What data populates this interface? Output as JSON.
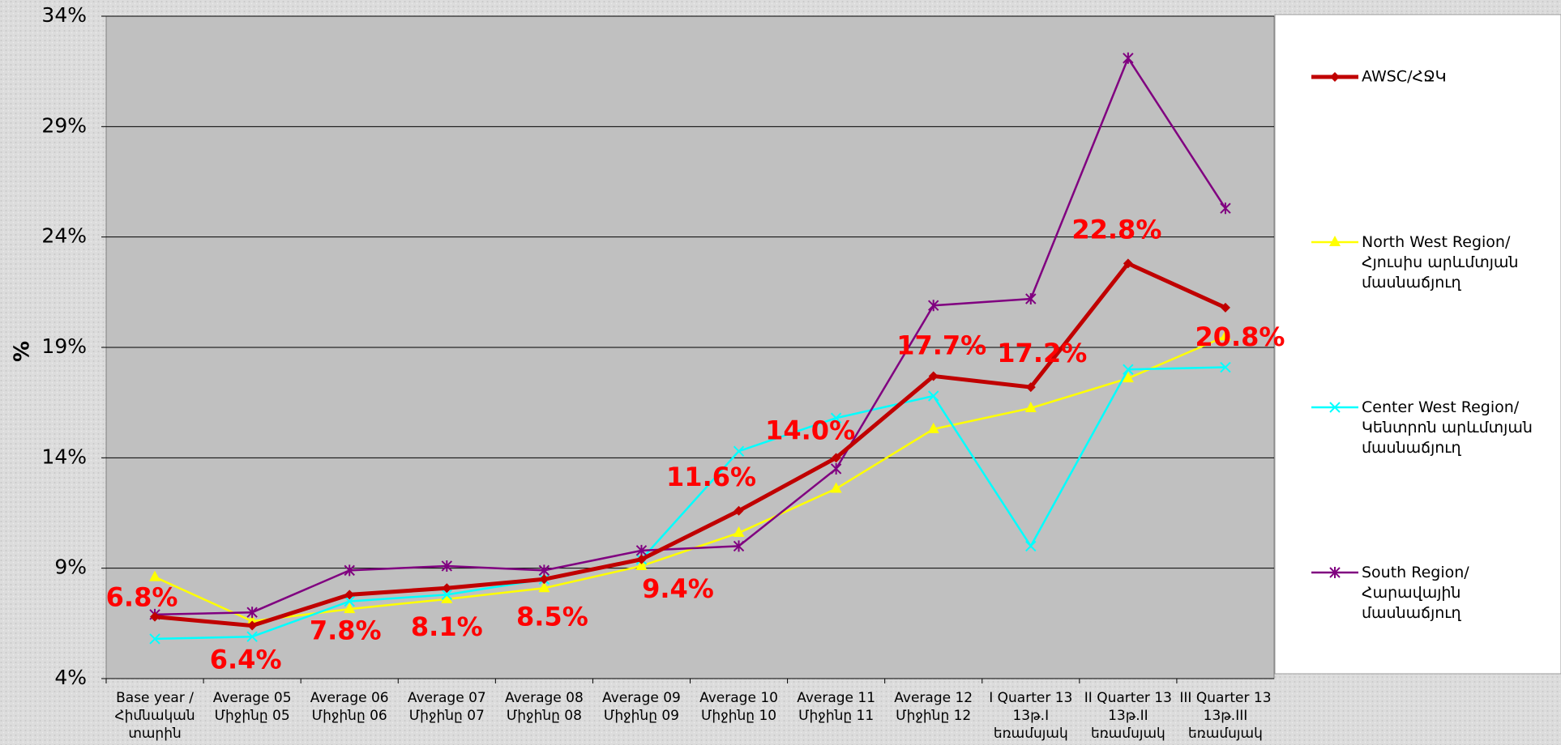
{
  "chart_data": {
    "type": "line",
    "y_label": "%",
    "categories": [
      "Base year /\nՀիմնական\nտարին",
      "Average 05\nՄիջինը 05",
      "Average 06\nՄիջինը 06",
      "Average 07\nՄիջինը 07",
      "Average 08\nՄիջինը 08",
      "Average 09\nՄիջինը 09",
      "Average 10\nՄիջինը 10",
      "Average 11\nՄիջինը 11",
      "Average 12\nՄիջինը 12",
      "I Quarter 13\n13թ.I\nեռամսյակ",
      "II Quarter 13\n13թ.II\nեռամսյակ",
      "III Quarter 13\n13թ.III\nեռամսյակ"
    ],
    "series": [
      {
        "name": "AWSC/ՀՋԿ",
        "color": "#c00000",
        "marker": "diamond",
        "values": [
          6.8,
          6.4,
          7.8,
          8.1,
          8.5,
          9.4,
          11.6,
          14.0,
          17.7,
          17.2,
          22.8,
          20.8
        ],
        "value_labels": [
          "6.8%",
          "6.4%",
          "7.8%",
          "8.1%",
          "8.5%",
          "9.4%",
          "11.6%",
          "14.0%",
          "17.7%",
          "17.2%",
          "22.8%",
          "20.8%"
        ]
      },
      {
        "name": "North West Region/\nՀյուսիս արևմտյան\nմասնաճյուղ",
        "color": "#ffff00",
        "marker": "triangle",
        "values": [
          8.6,
          6.6,
          7.15,
          7.6,
          8.1,
          9.1,
          10.6,
          12.6,
          15.3,
          16.25,
          17.6,
          19.5
        ]
      },
      {
        "name": "Center West Region/\nԿենտրոն արևմտյան\nմասնաճյուղ",
        "color": "#00ffff",
        "marker": "x",
        "values": [
          5.8,
          5.9,
          7.5,
          7.8,
          8.5,
          9.4,
          14.3,
          15.8,
          16.8,
          10.0,
          18.0,
          18.1
        ]
      },
      {
        "name": "South Region/\nՀարավային\nմասնաճյուղ",
        "color": "#800080",
        "marker": "star",
        "values": [
          6.9,
          7.0,
          8.9,
          9.1,
          8.9,
          9.8,
          10.0,
          13.5,
          20.9,
          21.2,
          32.1,
          25.3
        ]
      }
    ],
    "ylim": [
      4,
      34
    ],
    "yticks": [
      {
        "value": 4,
        "label": "4%"
      },
      {
        "value": 9,
        "label": "9%"
      },
      {
        "value": 14,
        "label": "14%"
      },
      {
        "value": 19,
        "label": "19%"
      },
      {
        "value": 24,
        "label": "24%"
      },
      {
        "value": 29,
        "label": "29%"
      },
      {
        "value": 34,
        "label": "34%"
      }
    ],
    "grid": true
  }
}
